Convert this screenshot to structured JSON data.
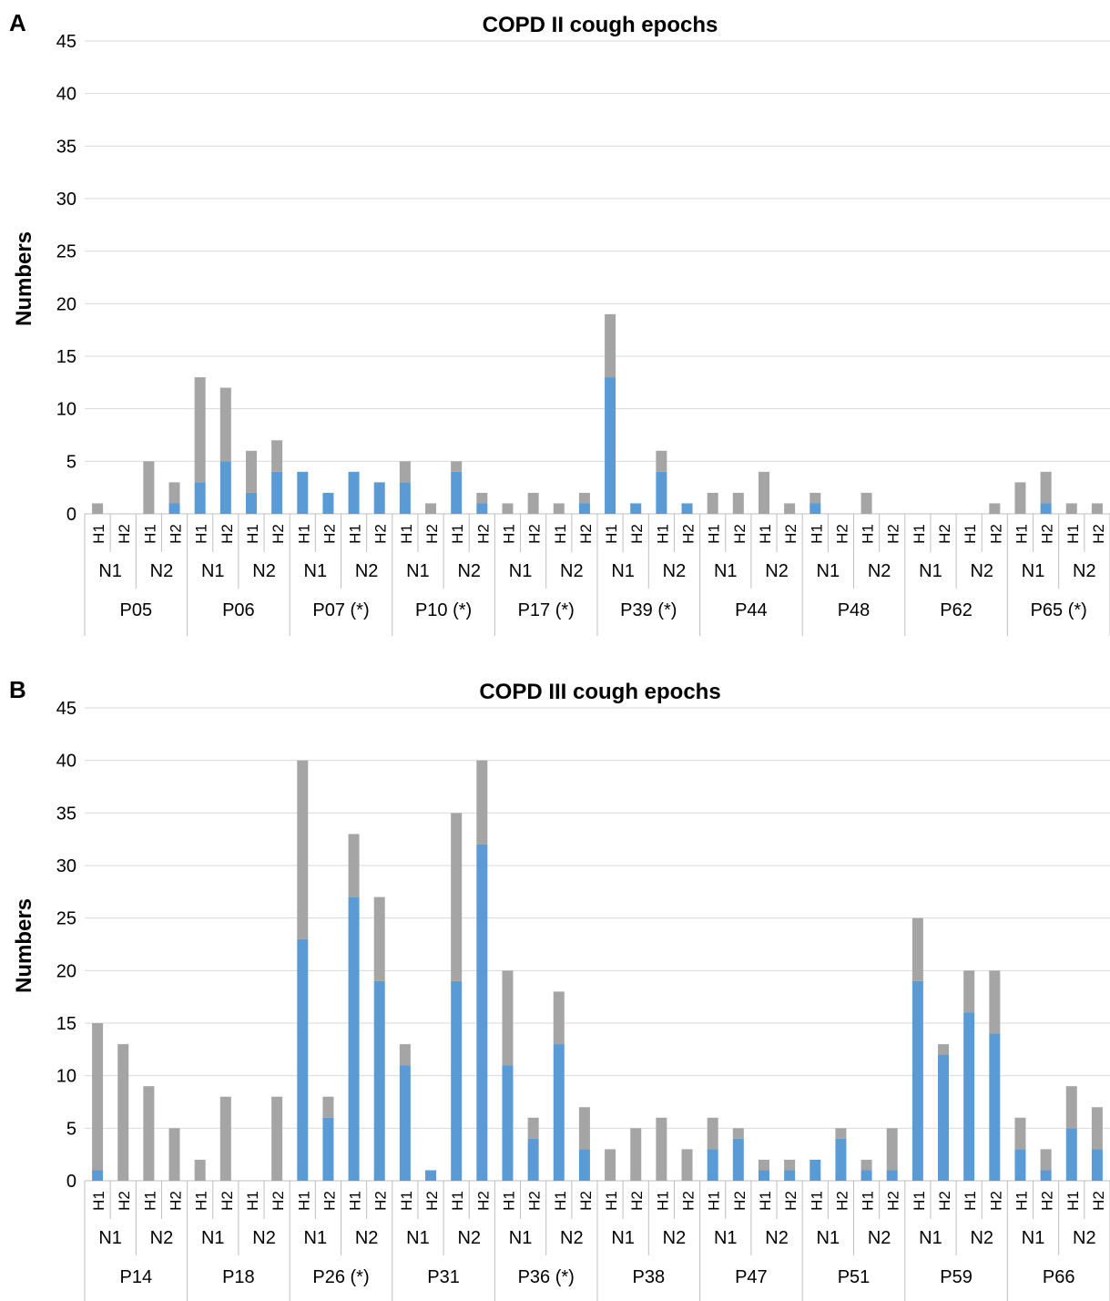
{
  "colors": {
    "blue": "#5b9bd5",
    "gray": "#a5a5a5",
    "grid": "#d9d9d9",
    "axis": "#bfbfbf",
    "text": "#000000"
  },
  "chart_data": [
    {
      "type": "bar",
      "stacked": true,
      "panel_label": "A",
      "title": "COPD II cough epochs",
      "ylabel": "Numbers",
      "ylim": [
        0,
        45
      ],
      "yticks": [
        0,
        5,
        10,
        15,
        20,
        25,
        30,
        35,
        40,
        45
      ],
      "grid": true,
      "category_levels": {
        "hours": [
          "H1",
          "H2"
        ],
        "nights": [
          "N1",
          "N2"
        ],
        "patients": [
          "P05",
          "P06",
          "P07 (*)",
          "P10 (*)",
          "P17 (*)",
          "P39 (*)",
          "P44",
          "P48",
          "P62",
          "P65 (*)"
        ]
      },
      "series": [
        {
          "name": "",
          "color": "blue",
          "values": [
            0,
            0,
            0,
            1,
            3,
            5,
            2,
            4,
            4,
            2,
            4,
            3,
            3,
            0,
            4,
            1,
            0,
            0,
            0,
            1,
            13,
            1,
            4,
            1,
            0,
            0,
            0,
            0,
            1,
            0,
            0,
            0,
            0,
            0,
            0,
            0,
            0,
            1,
            0,
            0
          ]
        },
        {
          "name": "",
          "color": "gray",
          "values": [
            1,
            0,
            5,
            2,
            10,
            7,
            4,
            3,
            0,
            0,
            0,
            0,
            2,
            1,
            1,
            1,
            1,
            2,
            1,
            1,
            6,
            0,
            2,
            0,
            2,
            2,
            4,
            1,
            1,
            0,
            2,
            0,
            0,
            0,
            0,
            1,
            3,
            3,
            1,
            1
          ]
        }
      ]
    },
    {
      "type": "bar",
      "stacked": true,
      "panel_label": "B",
      "title": "COPD III cough epochs",
      "ylabel": "Numbers",
      "ylim": [
        0,
        45
      ],
      "yticks": [
        0,
        5,
        10,
        15,
        20,
        25,
        30,
        35,
        40,
        45
      ],
      "grid": true,
      "category_levels": {
        "hours": [
          "H1",
          "H2"
        ],
        "nights": [
          "N1",
          "N2"
        ],
        "patients": [
          "P14",
          "P18",
          "P26 (*)",
          "P31",
          "P36 (*)",
          "P38",
          "P47",
          "P51",
          "P59",
          "P66"
        ]
      },
      "series": [
        {
          "name": "",
          "color": "blue",
          "values": [
            1,
            0,
            0,
            0,
            0,
            0,
            0,
            0,
            23,
            6,
            27,
            19,
            11,
            1,
            19,
            32,
            11,
            4,
            13,
            3,
            0,
            0,
            0,
            0,
            3,
            4,
            1,
            1,
            2,
            4,
            1,
            1,
            19,
            12,
            16,
            14,
            3,
            1,
            5,
            3
          ]
        },
        {
          "name": "",
          "color": "gray",
          "values": [
            14,
            13,
            9,
            5,
            2,
            8,
            0,
            8,
            17,
            2,
            6,
            8,
            2,
            0,
            16,
            8,
            9,
            2,
            5,
            4,
            3,
            5,
            6,
            3,
            3,
            1,
            1,
            1,
            0,
            1,
            1,
            4,
            6,
            1,
            4,
            6,
            3,
            2,
            4,
            4
          ]
        }
      ]
    }
  ]
}
